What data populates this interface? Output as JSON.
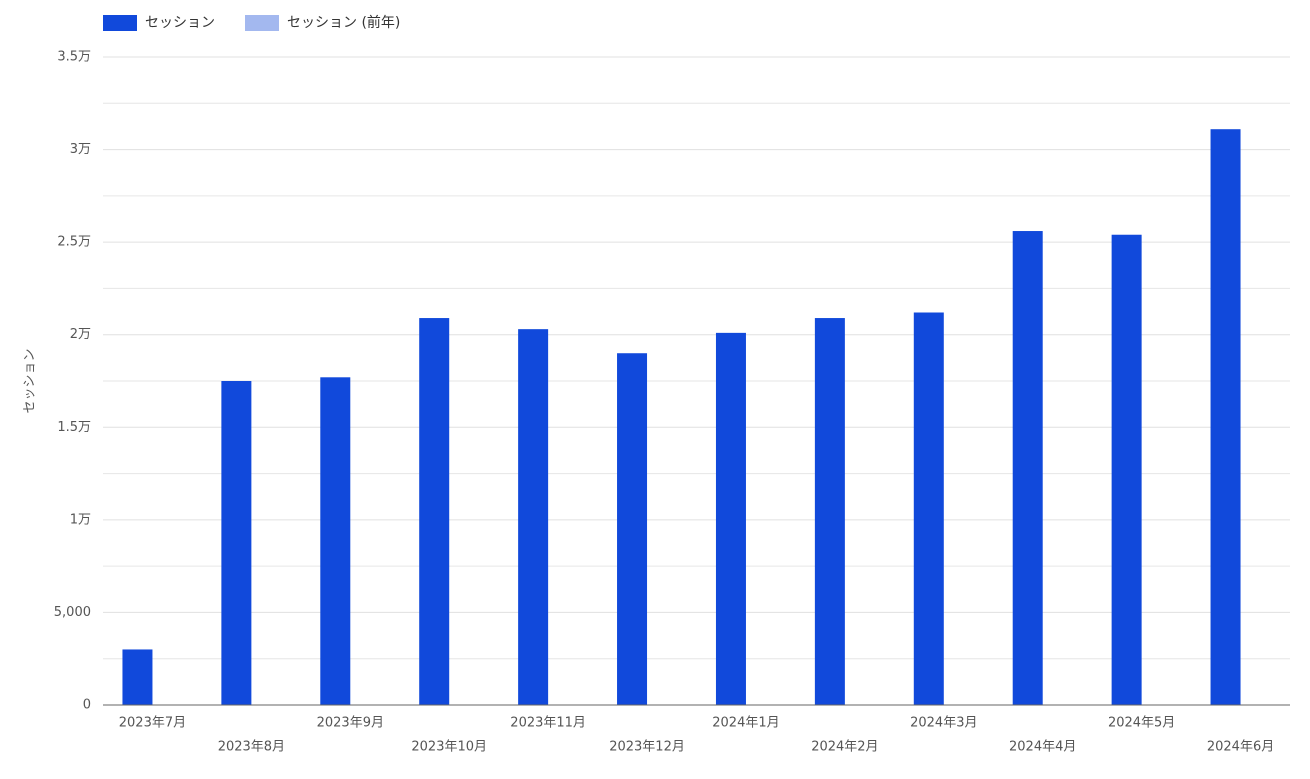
{
  "chart_data": {
    "type": "bar",
    "y_axis_label": "セッション",
    "categories": [
      "2023年7月",
      "2023年8月",
      "2023年9月",
      "2023年10月",
      "2023年11月",
      "2023年12月",
      "2024年1月",
      "2024年2月",
      "2024年3月",
      "2024年4月",
      "2024年5月",
      "2024年6月"
    ],
    "series": [
      {
        "name": "セッション",
        "color": "#1149db",
        "values": [
          3000,
          17500,
          17700,
          20900,
          20300,
          19000,
          20100,
          20900,
          21200,
          25600,
          25400,
          31100
        ]
      },
      {
        "name": "セッション (前年)",
        "color": "#a3b8ef",
        "values": [
          null,
          null,
          null,
          null,
          null,
          null,
          null,
          null,
          null,
          null,
          null,
          null
        ]
      }
    ],
    "ylim": [
      0,
      35000
    ],
    "yticks": [
      0,
      {
        "value": 5000,
        "label": "5,000"
      },
      {
        "value": 10000,
        "label": "1万"
      },
      {
        "value": 15000,
        "label": "1.5万"
      },
      {
        "value": 20000,
        "label": "2万"
      },
      {
        "value": 25000,
        "label": "2.5万"
      },
      {
        "value": 30000,
        "label": "3万"
      },
      {
        "value": 35000,
        "label": "3.5万"
      }
    ],
    "minor_grid": [
      2500,
      7500,
      12500,
      17500,
      22500,
      27500,
      32500
    ],
    "grid": true,
    "legend": "top-left"
  }
}
